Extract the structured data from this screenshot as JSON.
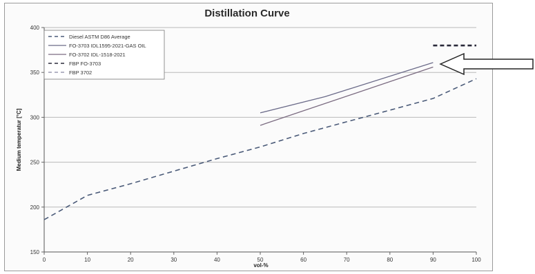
{
  "chart_data": {
    "type": "line",
    "title": "Distillation Curve",
    "xlabel": "vol-%",
    "ylabel": "Medium temperatur [°C]",
    "xlim": [
      0,
      100
    ],
    "ylim": [
      150,
      400
    ],
    "x_ticks": [
      0,
      10,
      20,
      30,
      40,
      50,
      60,
      70,
      80,
      90,
      100
    ],
    "y_ticks": [
      150,
      200,
      250,
      300,
      350,
      400
    ],
    "grid": "horizontal",
    "legend_position": "top-left",
    "series": [
      {
        "name": "Diesel ASTM D86 Average",
        "style": "dashed",
        "color": "#4a5a78",
        "x": [
          0,
          10,
          20,
          30,
          40,
          50,
          60,
          70,
          80,
          90,
          100
        ],
        "y": [
          186,
          213,
          226,
          240,
          254,
          267,
          282,
          295,
          308,
          321,
          343
        ]
      },
      {
        "name": "FO-3703 IDL1595-2021-GAS OIL",
        "style": "solid",
        "color": "#6a6a88",
        "x": [
          50,
          65,
          90
        ],
        "y": [
          305,
          323,
          361
        ]
      },
      {
        "name": "FO-3702 IDL-1518-2021",
        "style": "solid",
        "color": "#7a6a80",
        "x": [
          50,
          90
        ],
        "y": [
          291,
          356
        ]
      },
      {
        "name": "FBP FO-3703",
        "style": "dashed",
        "color": "#2a2a3a",
        "x": [
          90,
          100
        ],
        "y": [
          380,
          380
        ]
      },
      {
        "name": "FBP 3702",
        "style": "dashed",
        "color": "#9a9ab0",
        "x": [],
        "y": []
      }
    ]
  }
}
